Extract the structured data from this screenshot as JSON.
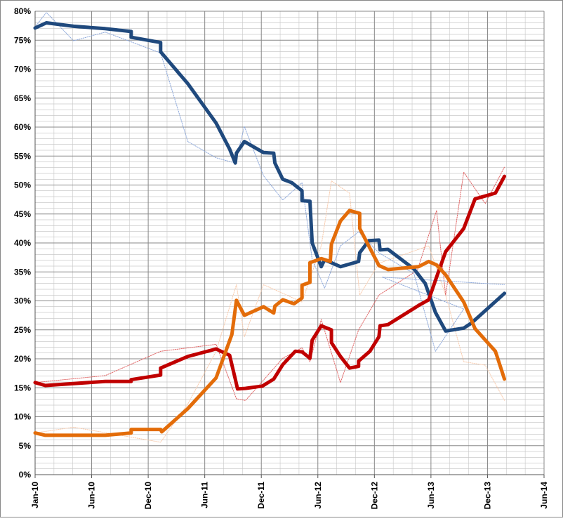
{
  "chart_data": {
    "type": "line",
    "xlim": [
      2010,
      2014.5
    ],
    "xticks": [
      {
        "value": 2010,
        "label": "Jan-10"
      },
      {
        "value": 2010.5,
        "label": "Jun-10"
      },
      {
        "value": 2011,
        "label": "Dec-10"
      },
      {
        "value": 2011.5,
        "label": "Jun-11"
      },
      {
        "value": 2012,
        "label": "Dec-11"
      },
      {
        "value": 2012.5,
        "label": "Jun-12"
      },
      {
        "value": 2013,
        "label": "Dec-12"
      },
      {
        "value": 2013.5,
        "label": "Jun-13"
      },
      {
        "value": 2014,
        "label": "Dec-13"
      },
      {
        "value": 2014.5,
        "label": "Jun-14"
      }
    ],
    "ylim": [
      0,
      80
    ],
    "yticks": [
      {
        "value": 0,
        "label": "0%"
      },
      {
        "value": 5,
        "label": "5%"
      },
      {
        "value": 10,
        "label": "10%"
      },
      {
        "value": 15,
        "label": "15%"
      },
      {
        "value": 20,
        "label": "20%"
      },
      {
        "value": 25,
        "label": "25%"
      },
      {
        "value": 30,
        "label": "30%"
      },
      {
        "value": 35,
        "label": "35%"
      },
      {
        "value": 40,
        "label": "40%"
      },
      {
        "value": 45,
        "label": "45%"
      },
      {
        "value": 50,
        "label": "50%"
      },
      {
        "value": 55,
        "label": "55%"
      },
      {
        "value": 60,
        "label": "60%"
      },
      {
        "value": 65,
        "label": "65%"
      },
      {
        "value": 70,
        "label": "70%"
      },
      {
        "value": 75,
        "label": "75%"
      },
      {
        "value": 80,
        "label": "80%"
      }
    ],
    "grid": true,
    "y_minor_step": 1,
    "x_minor_divisions": 3,
    "series": [
      {
        "color": "#f8cbad",
        "width": 1,
        "dashed": true,
        "x": [
          2010.0,
          2010.34,
          2011.11,
          2011.35,
          2011.6,
          2011.78,
          2011.85,
          2012.02,
          2012.36,
          2012.53,
          2012.62,
          2012.78,
          2012.87,
          2013.04,
          2013.48,
          2013.63,
          2013.79,
          2013.98,
          2014.15
        ],
        "values": [
          7.2,
          8.2,
          5.6,
          12.2,
          21.3,
          32.8,
          23.8,
          32.8,
          29.8,
          39.5,
          50.7,
          48.6,
          31.0,
          36.5,
          39.5,
          31.0,
          19.5,
          18.9,
          12.8
        ]
      },
      {
        "color": "#e06666",
        "width": 1,
        "dashed": true,
        "x": [
          2010.0,
          2010.62,
          2011.11,
          2011.6,
          2011.78,
          2011.86,
          2012.19,
          2012.36,
          2012.43,
          2012.53,
          2012.7,
          2012.86,
          2013.04,
          2013.38,
          2013.55,
          2013.63,
          2013.79,
          2013.98,
          2014.15
        ],
        "values": [
          15.9,
          17.1,
          21.3,
          22.5,
          13.1,
          12.8,
          20.1,
          21.9,
          19.5,
          26.8,
          15.9,
          25.0,
          31.0,
          35.3,
          45.6,
          31.0,
          52.2,
          46.8,
          53.1
        ]
      },
      {
        "color": "#8ea9db",
        "width": 1,
        "dashed": true,
        "x": [
          2010.0,
          2010.1,
          2010.34,
          2010.62,
          2011.11,
          2011.35,
          2011.6,
          2011.77,
          2011.85,
          2012.02,
          2012.19,
          2012.36,
          2012.45,
          2012.56,
          2012.7,
          2012.86,
          2013.04,
          2013.35,
          2013.54,
          2013.79,
          2013.07,
          2014.15
        ],
        "values": [
          77.3,
          79.8,
          74.9,
          76.4,
          72.8,
          57.5,
          54.7,
          53.8,
          60.1,
          51.6,
          47.4,
          50.4,
          37.1,
          32.2,
          39.5,
          41.9,
          38.3,
          34.7,
          21.3,
          28.6,
          34.1,
          32.8
        ]
      },
      {
        "color": "#1f497d",
        "width": 5,
        "dashed": false,
        "x": [
          2010.0,
          2010.1,
          2010.34,
          2010.62,
          2010.85,
          2010.85,
          2011.11,
          2011.11,
          2011.35,
          2011.6,
          2011.72,
          2011.77,
          2011.78,
          2011.85,
          2012.02,
          2012.11,
          2012.12,
          2012.19,
          2012.27,
          2012.36,
          2012.36,
          2012.43,
          2012.45,
          2012.53,
          2012.56,
          2012.7,
          2012.86,
          2012.87,
          2012.95,
          2013.04,
          2013.05,
          2013.12,
          2013.35,
          2013.45,
          2013.54,
          2013.63,
          2013.79,
          2013.86,
          2014.15
        ],
        "values": [
          77.1,
          78.0,
          77.4,
          77.0,
          76.5,
          75.5,
          74.6,
          73.0,
          67.5,
          60.7,
          56.2,
          53.8,
          55.5,
          57.5,
          55.6,
          55.5,
          53.8,
          51.0,
          50.4,
          49.0,
          47.3,
          47.2,
          40.0,
          35.9,
          37.1,
          35.9,
          36.8,
          38.3,
          40.4,
          40.5,
          38.8,
          38.9,
          35.5,
          33.0,
          28.0,
          24.8,
          25.3,
          26.2,
          31.3
        ]
      },
      {
        "color": "#c00000",
        "width": 5,
        "dashed": false,
        "x": [
          2010.0,
          2010.09,
          2010.62,
          2010.85,
          2010.85,
          2011.11,
          2011.11,
          2011.35,
          2011.6,
          2011.72,
          2011.77,
          2011.79,
          2011.86,
          2012.01,
          2012.11,
          2012.19,
          2012.3,
          2012.36,
          2012.43,
          2012.45,
          2012.53,
          2012.62,
          2012.62,
          2012.7,
          2012.78,
          2012.86,
          2012.86,
          2012.96,
          2013.04,
          2013.05,
          2013.12,
          2013.39,
          2013.48,
          2013.55,
          2013.63,
          2013.79,
          2013.89,
          2014.07,
          2014.15
        ],
        "values": [
          15.9,
          15.4,
          16.1,
          16.1,
          16.4,
          17.2,
          18.4,
          20.4,
          21.7,
          20.6,
          16.5,
          14.8,
          14.9,
          15.3,
          16.5,
          19.0,
          21.3,
          21.2,
          20.1,
          23.2,
          25.7,
          25.0,
          22.8,
          20.4,
          18.4,
          18.7,
          19.6,
          21.3,
          23.8,
          25.7,
          25.9,
          29.2,
          30.2,
          34.1,
          38.5,
          42.5,
          47.6,
          48.6,
          51.5
        ]
      },
      {
        "color": "#e36c09",
        "width": 5,
        "dashed": false,
        "x": [
          2010.0,
          2010.09,
          2010.62,
          2010.85,
          2010.85,
          2011.11,
          2011.12,
          2011.35,
          2011.6,
          2011.74,
          2011.78,
          2011.85,
          2012.02,
          2012.11,
          2012.12,
          2012.19,
          2012.29,
          2012.36,
          2012.36,
          2012.43,
          2012.43,
          2012.53,
          2012.61,
          2012.62,
          2012.7,
          2012.78,
          2012.87,
          2012.87,
          2013.04,
          2013.12,
          2013.39,
          2013.48,
          2013.55,
          2013.63,
          2013.79,
          2013.89,
          2014.07,
          2014.15
        ],
        "values": [
          7.2,
          6.8,
          6.8,
          7.2,
          7.8,
          7.8,
          7.4,
          11.4,
          16.7,
          24.2,
          30.1,
          27.5,
          29.0,
          27.9,
          29.1,
          30.2,
          29.5,
          30.5,
          32.7,
          33.2,
          36.6,
          37.3,
          36.8,
          39.8,
          43.8,
          45.6,
          45.1,
          42.5,
          36.1,
          35.4,
          35.9,
          36.8,
          36.2,
          34.5,
          29.8,
          25.2,
          21.3,
          16.5
        ]
      }
    ]
  }
}
